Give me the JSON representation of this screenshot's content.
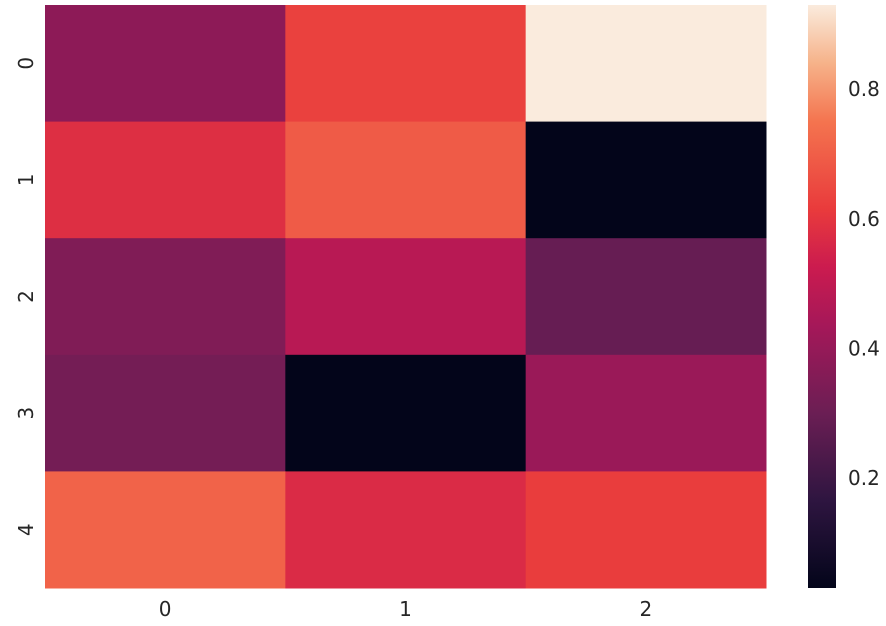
{
  "chart_data": {
    "type": "heatmap",
    "title": "",
    "xlabel": "",
    "ylabel": "",
    "x_categories": [
      "0",
      "1",
      "2"
    ],
    "y_categories": [
      "0",
      "1",
      "2",
      "3",
      "4"
    ],
    "values": [
      [
        0.38,
        0.63,
        0.93
      ],
      [
        0.58,
        0.69,
        0.03
      ],
      [
        0.35,
        0.48,
        0.29
      ],
      [
        0.32,
        0.03,
        0.41
      ],
      [
        0.71,
        0.57,
        0.62
      ]
    ],
    "vmin": 0.03,
    "vmax": 0.93,
    "colormap": "rocket",
    "colorbar": {
      "ticks": [
        0.2,
        0.4,
        0.6,
        0.8
      ],
      "tick_labels": [
        "0.2",
        "0.4",
        "0.6",
        "0.8"
      ]
    },
    "grid": false,
    "legend": "colorbar-right"
  }
}
